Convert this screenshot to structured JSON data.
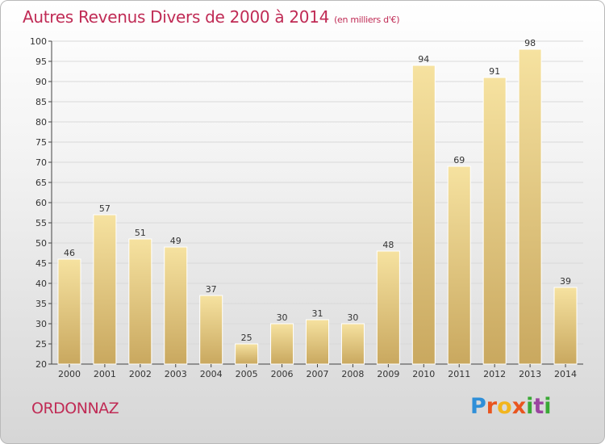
{
  "header": {
    "title": "Autres Revenus Divers de 2000 à 2014",
    "subtitle": "(en milliers d'€)"
  },
  "footer": {
    "commune": "ORDONNAZ",
    "brand_letters": [
      "P",
      "r",
      "o",
      "x",
      "i",
      "t",
      "i"
    ],
    "brand_colors": [
      "#2f8fd8",
      "#e9551f",
      "#f2b51e",
      "#e9551f",
      "#3aa935",
      "#9a45a0",
      "#3aa935"
    ]
  },
  "chart_data": {
    "type": "bar",
    "title": "Autres Revenus Divers de 2000 à 2014",
    "subtitle": "(en milliers d'€)",
    "xlabel": "",
    "ylabel": "",
    "categories": [
      "2000",
      "2001",
      "2002",
      "2003",
      "2004",
      "2005",
      "2006",
      "2007",
      "2008",
      "2009",
      "2010",
      "2011",
      "2012",
      "2013",
      "2014"
    ],
    "values": [
      46,
      57,
      51,
      49,
      37,
      25,
      30,
      31,
      30,
      48,
      94,
      69,
      91,
      98,
      39
    ],
    "ylim": [
      20,
      100
    ],
    "yticks": [
      20,
      25,
      30,
      35,
      40,
      45,
      50,
      55,
      60,
      65,
      70,
      75,
      80,
      85,
      90,
      95,
      100
    ],
    "grid": true,
    "legend": "none",
    "colors": {
      "bar_light": "#f6e2a0",
      "bar_dark": "#c9a85f",
      "grid": "#d9d9d9",
      "axis": "#444444"
    }
  }
}
